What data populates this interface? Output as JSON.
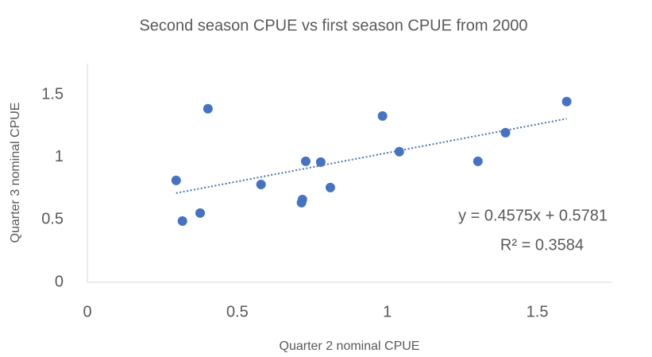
{
  "chart_data": {
    "type": "scatter",
    "title": "Second season CPUE vs first season CPUE from 2000",
    "x_label": "Quarter 2 nominal CPUE",
    "y_label": "Quarter 3 nominal CPUE",
    "color": "#4472c4",
    "x": [
      0.296,
      0.317,
      0.376,
      0.402,
      0.579,
      0.714,
      0.717,
      0.728,
      0.778,
      0.81,
      0.984,
      1.04,
      1.302,
      1.394,
      1.598
    ],
    "values": [
      0.815,
      0.49,
      0.554,
      1.389,
      0.783,
      0.637,
      0.662,
      0.968,
      0.962,
      0.758,
      1.331,
      1.045,
      0.968,
      1.197,
      1.446
    ],
    "xlim": [
      0,
      1.75
    ],
    "ylim": [
      0,
      1.75
    ],
    "xticks": [
      0,
      0.5,
      1,
      1.5
    ],
    "yticks": [
      0,
      0.5,
      1,
      1.5
    ],
    "trendline": {
      "slope": 0.4575,
      "intercept": 0.5781,
      "label": "y = 0.4575x + 0.5781",
      "r2_label": "R² = 0.3584"
    }
  }
}
